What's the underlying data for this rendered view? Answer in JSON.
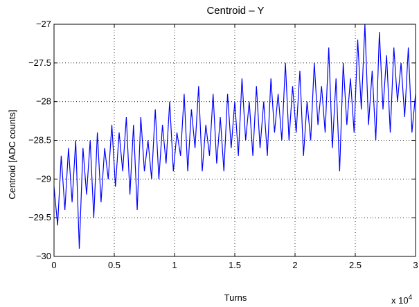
{
  "chart_data": {
    "type": "line",
    "title": "Centroid – Y",
    "xlabel": "Turns",
    "ylabel": "Centroid [ADC counts]",
    "x_multiplier_label": "x 10",
    "x_multiplier_exp": "4",
    "xlim": [
      0,
      30000
    ],
    "ylim": [
      -30,
      -27
    ],
    "x_ticks": [
      0,
      5000,
      10000,
      15000,
      20000,
      25000,
      30000
    ],
    "x_tick_labels": [
      "0",
      "0.5",
      "1",
      "1.5",
      "2",
      "2.5",
      "3"
    ],
    "y_ticks": [
      -30,
      -29.5,
      -29,
      -28.5,
      -28,
      -27.5,
      -27
    ],
    "y_tick_labels": [
      "−30",
      "−29.5",
      "−29",
      "−28.5",
      "−28",
      "−27.5",
      "−27"
    ],
    "grid": true,
    "series_color": "#0000ff",
    "series": [
      {
        "x": [
          0,
          300,
          600,
          900,
          1200,
          1500,
          1800,
          2100,
          2400,
          2700,
          3000,
          3300,
          3600,
          3900,
          4200,
          4500,
          4800,
          5100,
          5400,
          5700,
          6000,
          6300,
          6600,
          6900,
          7200,
          7500,
          7800,
          8100,
          8400,
          8700,
          9000,
          9300,
          9600,
          9900,
          10200,
          10500,
          10800,
          11100,
          11400,
          11700,
          12000,
          12300,
          12600,
          12900,
          13200,
          13500,
          13800,
          14100,
          14400,
          14700,
          15000,
          15300,
          15600,
          15900,
          16200,
          16500,
          16800,
          17100,
          17400,
          17700,
          18000,
          18300,
          18600,
          18900,
          19200,
          19500,
          19800,
          20100,
          20400,
          20700,
          21000,
          21300,
          21600,
          21900,
          22200,
          22500,
          22800,
          23100,
          23400,
          23700,
          24000,
          24300,
          24600,
          24900,
          25200,
          25500,
          25800,
          26100,
          26400,
          26700,
          27000,
          27300,
          27600,
          27900,
          28200,
          28500,
          28800,
          29100,
          29400,
          29700,
          30000
        ],
        "y": [
          -29.1,
          -29.6,
          -28.7,
          -29.4,
          -28.6,
          -29.3,
          -28.5,
          -29.9,
          -28.6,
          -29.2,
          -28.5,
          -29.5,
          -28.4,
          -29.3,
          -28.6,
          -29.0,
          -28.3,
          -29.1,
          -28.4,
          -28.9,
          -28.2,
          -29.2,
          -28.3,
          -29.4,
          -28.2,
          -28.9,
          -28.5,
          -29.0,
          -28.1,
          -29.0,
          -28.3,
          -28.8,
          -28.0,
          -28.9,
          -28.4,
          -28.7,
          -27.9,
          -28.9,
          -28.1,
          -28.6,
          -27.8,
          -28.9,
          -28.3,
          -28.7,
          -27.9,
          -28.8,
          -28.2,
          -28.9,
          -27.9,
          -28.6,
          -28.0,
          -28.7,
          -27.7,
          -28.5,
          -28.0,
          -28.7,
          -27.8,
          -28.6,
          -28.0,
          -28.7,
          -27.7,
          -28.4,
          -27.9,
          -28.5,
          -27.5,
          -28.5,
          -27.8,
          -28.4,
          -27.6,
          -28.7,
          -28.0,
          -28.5,
          -27.5,
          -28.3,
          -27.8,
          -28.4,
          -27.3,
          -28.6,
          -27.7,
          -28.9,
          -27.5,
          -28.3,
          -27.7,
          -28.4,
          -27.2,
          -28.1,
          -27.0,
          -28.3,
          -27.6,
          -28.5,
          -27.1,
          -28.1,
          -27.4,
          -28.4,
          -27.3,
          -28.0,
          -27.5,
          -28.2,
          -27.3,
          -28.4,
          -27.9
        ]
      }
    ]
  }
}
